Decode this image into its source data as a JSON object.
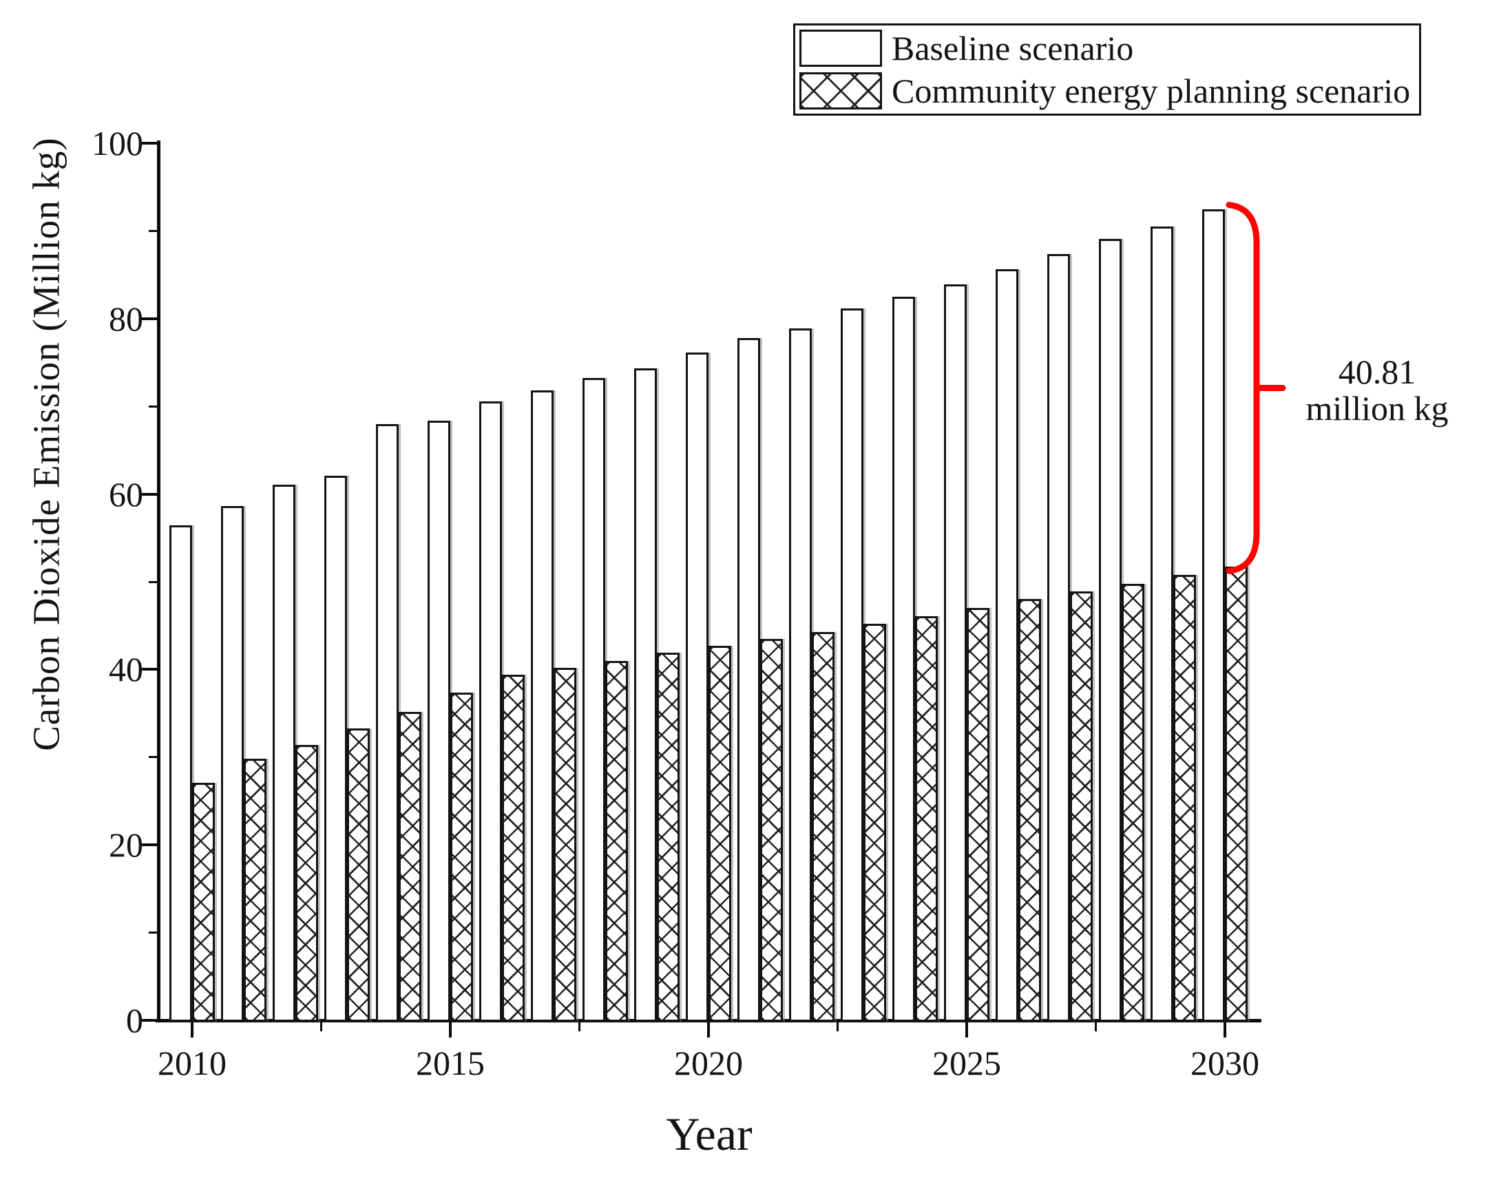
{
  "figure": {
    "y_axis_title": "Carbon Dioxide Emission (Million kg)",
    "x_axis_title": "Year"
  },
  "legend": {
    "items": [
      {
        "label": "Baseline scenario",
        "pattern": "solid-white"
      },
      {
        "label": "Community energy planning scenario",
        "pattern": "crosshatch"
      }
    ]
  },
  "annotation": {
    "line1": "40.81",
    "line2": "million kg",
    "brace_color": "#fb0500",
    "at_year": 2030
  },
  "chart_data": {
    "type": "bar",
    "title": "",
    "xlabel": "Year",
    "ylabel": "Carbon Dioxide Emission (Million kg)",
    "ylim": [
      0,
      100
    ],
    "grid": false,
    "legend_position": "top-right",
    "bar_style": {
      "outline_color": "#141414",
      "fill": "#ffffff",
      "hatch": "diagonal-cross"
    },
    "x": [
      2010,
      2011,
      2012,
      2013,
      2014,
      2015,
      2016,
      2017,
      2018,
      2019,
      2020,
      2021,
      2022,
      2023,
      2024,
      2025,
      2026,
      2027,
      2028,
      2029,
      2030
    ],
    "series": [
      {
        "name": "Baseline scenario",
        "values": [
          56.4,
          58.6,
          61.1,
          62.1,
          68.0,
          68.4,
          70.6,
          71.8,
          73.2,
          74.3,
          76.1,
          77.8,
          78.9,
          81.2,
          82.5,
          83.9,
          85.6,
          87.4,
          89.1,
          90.5,
          92.5
        ]
      },
      {
        "name": "Community energy planning scenario",
        "values": [
          27.1,
          29.8,
          31.4,
          33.3,
          35.2,
          37.4,
          39.4,
          40.2,
          41.0,
          41.9,
          42.7,
          43.5,
          44.3,
          45.2,
          46.1,
          47.0,
          48.0,
          48.9,
          49.8,
          50.8,
          51.7
        ]
      }
    ],
    "yticks_major": [
      0,
      20,
      40,
      60,
      80,
      100
    ],
    "yticks_minor": [
      10,
      30,
      50,
      70,
      90
    ],
    "xticks_major": [
      2010,
      2015,
      2020,
      2025,
      2030
    ],
    "xticks_minor": [
      2012.5,
      2017.5,
      2022.5,
      2027.5
    ],
    "annotation_value_million_kg": 40.81
  }
}
